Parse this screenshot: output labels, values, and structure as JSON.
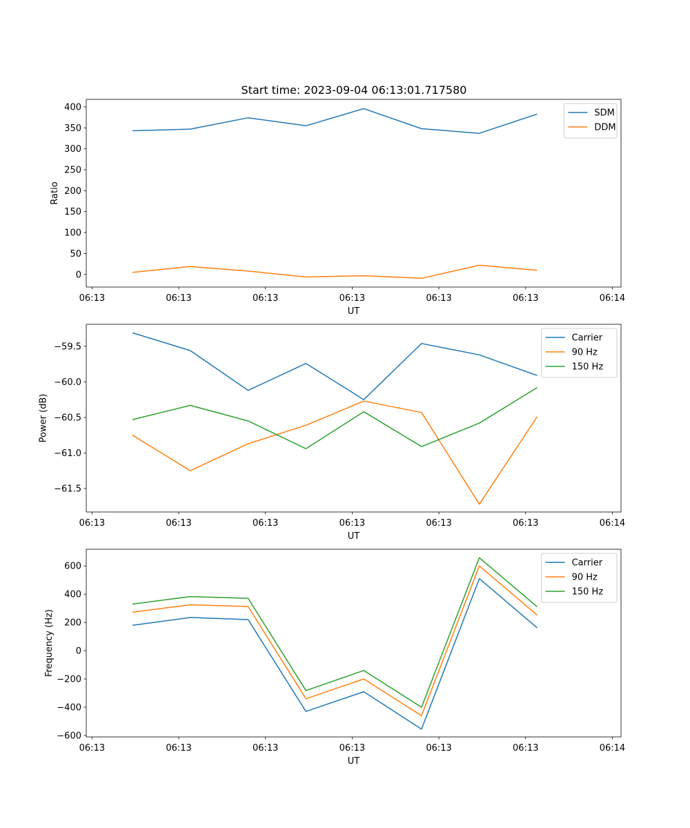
{
  "figure_title": "Start time: 2023-09-04 06:13:01.717580",
  "chart_data": [
    {
      "type": "line",
      "title": "Start time: 2023-09-04 06:13:01.717580",
      "xlabel": "UT",
      "ylabel": "Ratio",
      "x": [
        1,
        2,
        3,
        4,
        5,
        6,
        7,
        8
      ],
      "xlim": [
        0.2,
        9.45
      ],
      "xticks": [
        0.3,
        1.8,
        3.3,
        4.8,
        6.3,
        7.8,
        9.3
      ],
      "xtick_labels": [
        "06:13",
        "06:13",
        "06:13",
        "06:13",
        "06:13",
        "06:13",
        "06:14"
      ],
      "ylim": [
        -30,
        418
      ],
      "yticks": [
        0,
        50,
        100,
        150,
        200,
        250,
        300,
        350,
        400
      ],
      "ytick_labels": [
        "0",
        "50",
        "100",
        "150",
        "200",
        "250",
        "300",
        "350",
        "400"
      ],
      "legend": "top-right",
      "series": [
        {
          "name": "SDM",
          "color": "#1f77b4",
          "values": [
            343,
            347,
            374,
            355,
            396,
            348,
            337,
            383
          ]
        },
        {
          "name": "DDM",
          "color": "#ff7f0e",
          "values": [
            5,
            19,
            8,
            -6,
            -3,
            -9,
            22,
            10
          ]
        }
      ]
    },
    {
      "type": "line",
      "title": "",
      "xlabel": "UT",
      "ylabel": "Power (dB)",
      "x": [
        1,
        2,
        3,
        4,
        5,
        6,
        7,
        8
      ],
      "xlim": [
        0.2,
        9.45
      ],
      "xticks": [
        0.3,
        1.8,
        3.3,
        4.8,
        6.3,
        7.8,
        9.3
      ],
      "xtick_labels": [
        "06:13",
        "06:13",
        "06:13",
        "06:13",
        "06:13",
        "06:13",
        "06:14"
      ],
      "ylim": [
        -61.83,
        -59.19
      ],
      "yticks": [
        -61.5,
        -61.0,
        -60.5,
        -60.0,
        -59.5
      ],
      "ytick_labels": [
        "−61.5",
        "−61.0",
        "−60.5",
        "−60.0",
        "−59.5"
      ],
      "legend": "top-right",
      "series": [
        {
          "name": "Carrier",
          "color": "#1f77b4",
          "values": [
            -59.31,
            -59.56,
            -60.12,
            -59.74,
            -60.25,
            -59.46,
            -59.62,
            -59.91
          ]
        },
        {
          "name": "90 Hz",
          "color": "#ff7f0e",
          "values": [
            -60.75,
            -61.25,
            -60.87,
            -60.61,
            -60.27,
            -60.43,
            -61.72,
            -60.49
          ]
        },
        {
          "name": "150 Hz",
          "color": "#2ca02c",
          "values": [
            -60.53,
            -60.33,
            -60.55,
            -60.94,
            -60.42,
            -60.91,
            -60.58,
            -60.08
          ]
        }
      ]
    },
    {
      "type": "line",
      "title": "",
      "xlabel": "UT",
      "ylabel": "Frequency (Hz)",
      "x": [
        1,
        2,
        3,
        4,
        5,
        6,
        7,
        8
      ],
      "xlim": [
        0.2,
        9.45
      ],
      "xticks": [
        0.3,
        1.8,
        3.3,
        4.8,
        6.3,
        7.8,
        9.3
      ],
      "xtick_labels": [
        "06:13",
        "06:13",
        "06:13",
        "06:13",
        "06:13",
        "06:13",
        "06:14"
      ],
      "ylim": [
        -610,
        718
      ],
      "yticks": [
        -600,
        -400,
        -200,
        0,
        200,
        400,
        600
      ],
      "ytick_labels": [
        "−600",
        "−400",
        "−200",
        "0",
        "200",
        "400",
        "600"
      ],
      "legend": "top-right",
      "series": [
        {
          "name": "Carrier",
          "color": "#1f77b4",
          "values": [
            180,
            235,
            220,
            -430,
            -290,
            -555,
            510,
            162
          ]
        },
        {
          "name": "90 Hz",
          "color": "#ff7f0e",
          "values": [
            272,
            325,
            313,
            -340,
            -200,
            -460,
            600,
            252
          ]
        },
        {
          "name": "150 Hz",
          "color": "#2ca02c",
          "values": [
            330,
            383,
            371,
            -282,
            -140,
            -400,
            658,
            311
          ]
        }
      ]
    }
  ]
}
